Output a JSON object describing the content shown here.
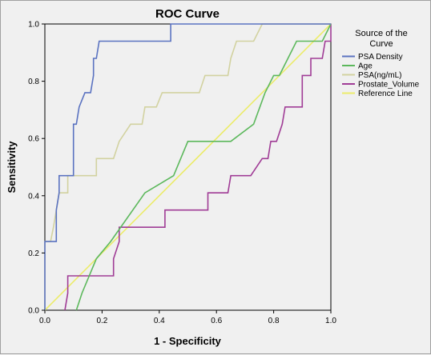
{
  "chart_data": {
    "type": "line",
    "title": "ROC Curve",
    "xlabel": "1 - Specificity",
    "ylabel": "Sensitivity",
    "xlim": [
      0,
      1
    ],
    "ylim": [
      0,
      1
    ],
    "x_ticks": [
      "0.0",
      "0.2",
      "0.4",
      "0.6",
      "0.8",
      "1.0"
    ],
    "y_ticks": [
      "0.0",
      "0.2",
      "0.4",
      "0.6",
      "0.8",
      "1.0"
    ],
    "grid": false,
    "legend_position": "right",
    "legend_title": "Source of the Curve",
    "series": [
      {
        "name": "PSA Density",
        "color": "#5b73c1",
        "points": [
          [
            0,
            0
          ],
          [
            0,
            0.24
          ],
          [
            0.04,
            0.24
          ],
          [
            0.04,
            0.35
          ],
          [
            0.05,
            0.41
          ],
          [
            0.05,
            0.47
          ],
          [
            0.1,
            0.47
          ],
          [
            0.1,
            0.65
          ],
          [
            0.11,
            0.65
          ],
          [
            0.12,
            0.71
          ],
          [
            0.14,
            0.76
          ],
          [
            0.16,
            0.76
          ],
          [
            0.17,
            0.82
          ],
          [
            0.17,
            0.88
          ],
          [
            0.18,
            0.88
          ],
          [
            0.19,
            0.94
          ],
          [
            0.44,
            0.94
          ],
          [
            0.44,
            1
          ],
          [
            1,
            1
          ]
        ]
      },
      {
        "name": "Age",
        "color": "#5cb85c",
        "points": [
          [
            0.11,
            0
          ],
          [
            0.13,
            0.06
          ],
          [
            0.18,
            0.18
          ],
          [
            0.23,
            0.24
          ],
          [
            0.35,
            0.41
          ],
          [
            0.45,
            0.47
          ],
          [
            0.5,
            0.59
          ],
          [
            0.65,
            0.59
          ],
          [
            0.73,
            0.65
          ],
          [
            0.77,
            0.76
          ],
          [
            0.8,
            0.82
          ],
          [
            0.82,
            0.82
          ],
          [
            0.88,
            0.94
          ],
          [
            0.97,
            0.94
          ],
          [
            1,
            1
          ]
        ]
      },
      {
        "name": "PSA(ng/mL)",
        "color": "#d2d2a0",
        "points": [
          [
            0,
            0
          ],
          [
            0,
            0.24
          ],
          [
            0.02,
            0.24
          ],
          [
            0.03,
            0.29
          ],
          [
            0.04,
            0.35
          ],
          [
            0.05,
            0.41
          ],
          [
            0.08,
            0.41
          ],
          [
            0.08,
            0.47
          ],
          [
            0.18,
            0.47
          ],
          [
            0.18,
            0.53
          ],
          [
            0.24,
            0.53
          ],
          [
            0.26,
            0.59
          ],
          [
            0.3,
            0.65
          ],
          [
            0.34,
            0.65
          ],
          [
            0.35,
            0.71
          ],
          [
            0.39,
            0.71
          ],
          [
            0.41,
            0.76
          ],
          [
            0.54,
            0.76
          ],
          [
            0.56,
            0.82
          ],
          [
            0.64,
            0.82
          ],
          [
            0.65,
            0.88
          ],
          [
            0.67,
            0.94
          ],
          [
            0.73,
            0.94
          ],
          [
            0.76,
            1
          ],
          [
            1,
            1
          ]
        ]
      },
      {
        "name": "Prostate_Volume",
        "color": "#a03c96",
        "points": [
          [
            0.07,
            0
          ],
          [
            0.08,
            0.06
          ],
          [
            0.08,
            0.12
          ],
          [
            0.24,
            0.12
          ],
          [
            0.24,
            0.18
          ],
          [
            0.26,
            0.24
          ],
          [
            0.26,
            0.29
          ],
          [
            0.42,
            0.29
          ],
          [
            0.42,
            0.35
          ],
          [
            0.57,
            0.35
          ],
          [
            0.57,
            0.41
          ],
          [
            0.64,
            0.41
          ],
          [
            0.65,
            0.47
          ],
          [
            0.72,
            0.47
          ],
          [
            0.76,
            0.53
          ],
          [
            0.78,
            0.53
          ],
          [
            0.79,
            0.59
          ],
          [
            0.81,
            0.59
          ],
          [
            0.83,
            0.65
          ],
          [
            0.84,
            0.71
          ],
          [
            0.9,
            0.71
          ],
          [
            0.9,
            0.82
          ],
          [
            0.93,
            0.82
          ],
          [
            0.93,
            0.88
          ],
          [
            0.97,
            0.88
          ],
          [
            0.98,
            0.94
          ],
          [
            1,
            0.94
          ],
          [
            1,
            1
          ]
        ]
      },
      {
        "name": "Reference Line",
        "color": "#ecec6a",
        "points": [
          [
            0,
            0
          ],
          [
            1,
            1
          ]
        ]
      }
    ]
  }
}
